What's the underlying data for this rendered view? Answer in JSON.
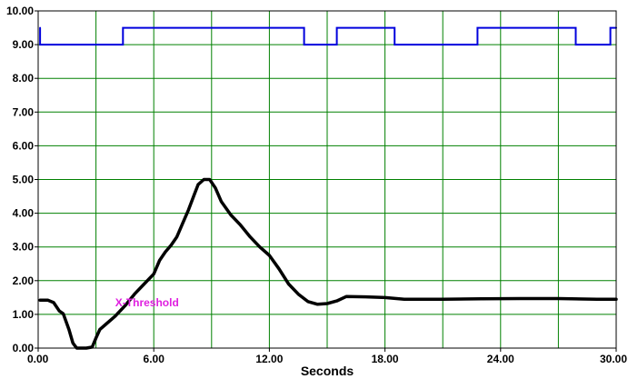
{
  "chart_data": {
    "type": "line",
    "xlabel": "Seconds",
    "ylabel": "",
    "xlim": [
      0,
      30
    ],
    "ylim": [
      0,
      10
    ],
    "grid": true,
    "grid_color": "#008000",
    "axis_color": "#000000",
    "x_ticks": [
      "0.00",
      "6.00",
      "12.00",
      "18.00",
      "24.00",
      "30.00"
    ],
    "y_ticks": [
      "0.00",
      "1.00",
      "2.00",
      "3.00",
      "4.00",
      "5.00",
      "6.00",
      "7.00",
      "8.00",
      "9.00",
      "10.00"
    ],
    "annotations": [
      {
        "text": "X-Threshold",
        "x": 4.0,
        "y": 1.35,
        "color": "#e020e0"
      }
    ],
    "series": [
      {
        "color": "#0000dd",
        "width": 2,
        "step": true,
        "x": [
          0.1,
          0.1,
          4.4,
          4.4,
          13.8,
          13.8,
          15.5,
          15.5,
          18.5,
          18.5,
          22.8,
          22.8,
          27.9,
          27.9,
          29.7,
          29.7,
          30.0
        ],
        "y": [
          9.5,
          9.0,
          9.0,
          9.5,
          9.5,
          9.0,
          9.0,
          9.5,
          9.5,
          9.0,
          9.0,
          9.5,
          9.5,
          9.0,
          9.0,
          9.5,
          9.5
        ]
      },
      {
        "color": "#000000",
        "width": 3.5,
        "step": false,
        "x": [
          0.1,
          0.5,
          0.8,
          1.1,
          1.3,
          1.6,
          1.8,
          2.0,
          2.2,
          2.5,
          2.8,
          3.0,
          3.2,
          3.5,
          4.0,
          4.5,
          5.0,
          5.5,
          6.0,
          6.3,
          6.6,
          6.9,
          7.2,
          7.5,
          7.8,
          8.1,
          8.3,
          8.6,
          8.9,
          9.2,
          9.5,
          10.0,
          10.5,
          11.0,
          11.5,
          12.0,
          12.5,
          13.0,
          13.5,
          14.0,
          14.5,
          15.0,
          15.5,
          16.0,
          17.0,
          18.0,
          19.0,
          21.0,
          23.0,
          25.0,
          27.0,
          29.0,
          30.0
        ],
        "y": [
          1.42,
          1.42,
          1.35,
          1.1,
          1.02,
          0.55,
          0.15,
          0.0,
          0.0,
          0.0,
          0.03,
          0.3,
          0.55,
          0.7,
          0.95,
          1.25,
          1.6,
          1.9,
          2.2,
          2.6,
          2.85,
          3.05,
          3.3,
          3.7,
          4.1,
          4.55,
          4.85,
          5.0,
          5.0,
          4.75,
          4.35,
          3.95,
          3.65,
          3.3,
          3.0,
          2.75,
          2.35,
          1.9,
          1.6,
          1.38,
          1.3,
          1.32,
          1.4,
          1.53,
          1.52,
          1.5,
          1.45,
          1.45,
          1.46,
          1.47,
          1.47,
          1.45,
          1.45
        ]
      }
    ]
  }
}
